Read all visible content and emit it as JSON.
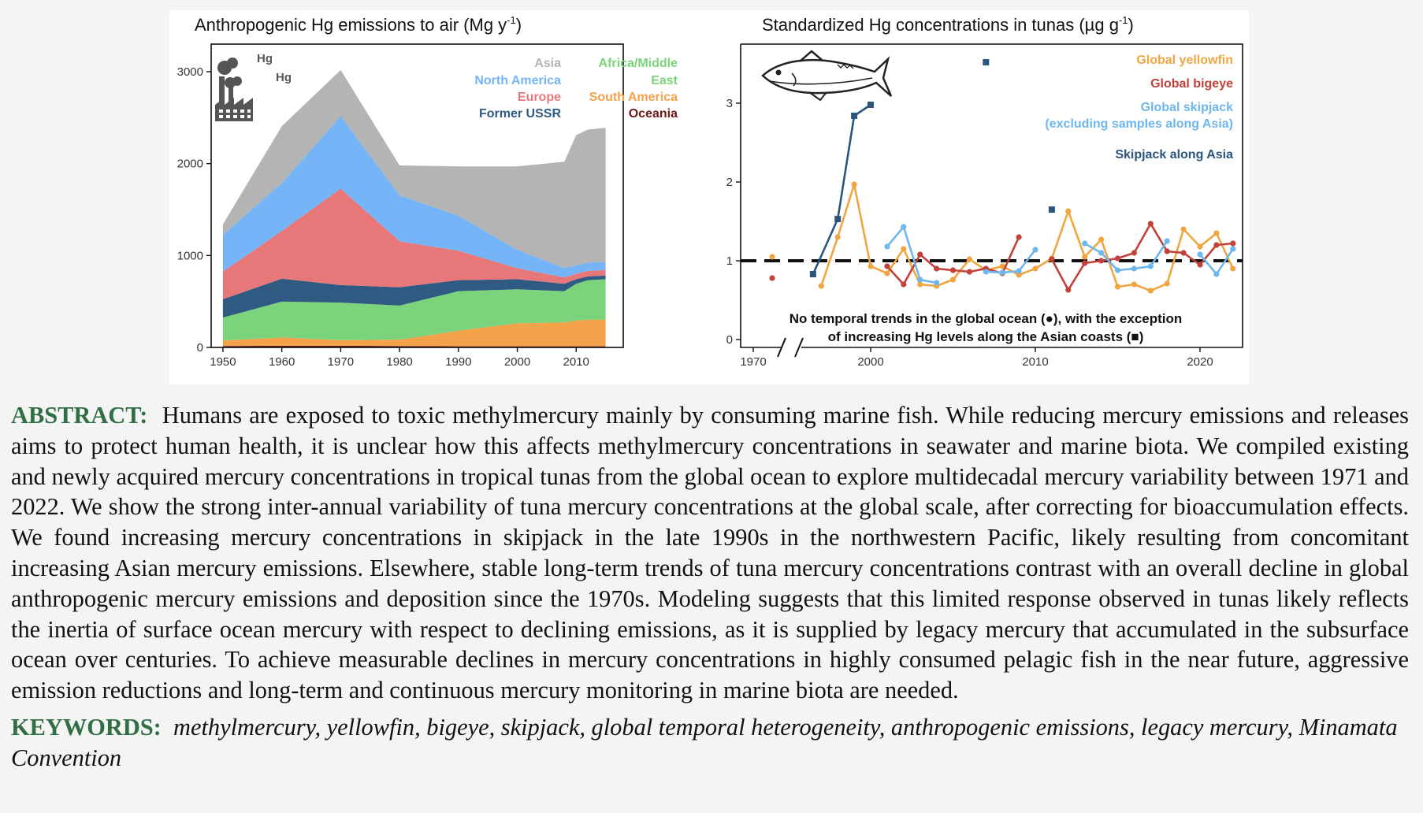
{
  "figure": {
    "left_panel": {
      "title": "Anthropogenic Hg emissions to air (Mg y",
      "title_sup": "-1",
      "title_end": ")",
      "icon_labels": [
        "Hg",
        "Hg"
      ],
      "legend": [
        {
          "name": "Asia",
          "color": "#b4b4b4"
        },
        {
          "name": "North America",
          "color": "#74b4f7"
        },
        {
          "name": "Europe",
          "color": "#e8777a"
        },
        {
          "name": "Former USSR",
          "color": "#2f5b82"
        },
        {
          "name": "Africa/Middle",
          "name_line2": "East",
          "color": "#7bd47b"
        },
        {
          "name": "South America",
          "color": "#f4a24a"
        },
        {
          "name": "Oceania",
          "color": "#6b1a14"
        }
      ]
    },
    "right_panel": {
      "title": "Standardized Hg concentrations in tunas (µg g",
      "title_sup": "-1",
      "title_end": ")",
      "legend": [
        {
          "name": "Global yellowfin",
          "color": "#f0a640"
        },
        {
          "name": "Global bigeye",
          "color": "#c2413a"
        },
        {
          "name": "Global skipjack",
          "name_line2": "(excluding samples along Asia)",
          "color": "#6db6ee"
        },
        {
          "name": "Skipjack along Asia",
          "color": "#2c557d"
        }
      ],
      "annotation_line1": "No temporal trends in the global ocean (●), with the exception",
      "annotation_line2": "of increasing Hg levels along the Asian coasts (■)"
    }
  },
  "chart_data": [
    {
      "type": "area",
      "stacked": true,
      "title": "Anthropogenic Hg emissions to air (Mg y-1)",
      "x": [
        1950,
        1960,
        1970,
        1980,
        1990,
        2000,
        2008,
        2010,
        2012,
        2015
      ],
      "xticks": [
        1950,
        1960,
        1970,
        1980,
        1990,
        2000,
        2010
      ],
      "ylim": [
        0,
        3300
      ],
      "yticks": [
        0,
        1000,
        2000,
        3000
      ],
      "legend_position": "top-right",
      "series": [
        {
          "name": "Oceania",
          "color": "#6b1a14",
          "values": [
            15,
            18,
            18,
            15,
            12,
            12,
            12,
            12,
            12,
            12
          ]
        },
        {
          "name": "South America",
          "color": "#f4a24a",
          "values": [
            60,
            90,
            60,
            70,
            170,
            250,
            260,
            280,
            290,
            290
          ]
        },
        {
          "name": "Africa/Middle East",
          "color": "#7bd47b",
          "values": [
            250,
            390,
            410,
            370,
            430,
            370,
            340,
            400,
            430,
            440
          ]
        },
        {
          "name": "Former USSR",
          "color": "#2f5b82",
          "values": [
            200,
            250,
            190,
            200,
            120,
            110,
            80,
            50,
            40,
            40
          ]
        },
        {
          "name": "Europe",
          "color": "#e8777a",
          "values": [
            300,
            520,
            1050,
            500,
            320,
            120,
            70,
            60,
            60,
            60
          ]
        },
        {
          "name": "North America",
          "color": "#74b4f7",
          "values": [
            400,
            520,
            790,
            500,
            380,
            200,
            100,
            90,
            90,
            90
          ]
        },
        {
          "name": "Asia",
          "color": "#b4b4b4",
          "values": [
            115,
            620,
            500,
            325,
            538,
            908,
            1158,
            1418,
            1448,
            1458
          ]
        }
      ]
    },
    {
      "type": "line",
      "title": "Standardized Hg concentrations in tunas (µg g-1)",
      "xlim": [
        1969,
        2025
      ],
      "xticks": [
        1970,
        2000,
        2010,
        2020
      ],
      "axis_break": "between 1970 and 2000",
      "ylim": [
        -0.1,
        3.75
      ],
      "yticks": [
        0,
        1,
        2,
        3
      ],
      "reference_line": 1,
      "legend_position": "top-right",
      "series": [
        {
          "name": "Global yellowfin",
          "color": "#f0a640",
          "marker": "circle",
          "points": [
            [
              1971.5,
              1.05
            ],
            [
              1997,
              0.68
            ],
            [
              1998,
              1.3
            ],
            [
              1999,
              1.97
            ],
            [
              2000,
              0.93
            ],
            [
              2001,
              0.84
            ],
            [
              2002,
              1.15
            ],
            [
              2003,
              0.7
            ],
            [
              2004,
              0.68
            ],
            [
              2005,
              0.76
            ],
            [
              2006,
              1.02
            ],
            [
              2007,
              0.88
            ],
            [
              2008,
              0.93
            ],
            [
              2009,
              0.82
            ],
            [
              2010,
              0.9
            ],
            [
              2011,
              1.03
            ],
            [
              2012,
              1.63
            ],
            [
              2013,
              1.05
            ],
            [
              2014,
              1.27
            ],
            [
              2015,
              0.67
            ],
            [
              2016,
              0.7
            ],
            [
              2017,
              0.62
            ],
            [
              2018,
              0.71
            ],
            [
              2019,
              1.4
            ],
            [
              2020,
              1.18
            ],
            [
              2021,
              1.35
            ],
            [
              2022,
              0.9
            ]
          ]
        },
        {
          "name": "Global bigeye",
          "color": "#c2413a",
          "marker": "circle",
          "points": [
            [
              1971.5,
              0.78
            ],
            [
              2001,
              0.93
            ],
            [
              2002,
              0.7
            ],
            [
              2003,
              1.08
            ],
            [
              2004,
              0.9
            ],
            [
              2005,
              0.88
            ],
            [
              2006,
              0.86
            ],
            [
              2007,
              0.9
            ],
            [
              2008,
              0.84
            ],
            [
              2009,
              1.3
            ],
            [
              2011,
              1.02
            ],
            [
              2012,
              0.63
            ],
            [
              2013,
              0.97
            ],
            [
              2014,
              1.0
            ],
            [
              2015,
              1.03
            ],
            [
              2016,
              1.1
            ],
            [
              2017,
              1.47
            ],
            [
              2018,
              1.12
            ],
            [
              2019,
              1.1
            ],
            [
              2020,
              0.95
            ],
            [
              2021,
              1.2
            ],
            [
              2022,
              1.22
            ]
          ]
        },
        {
          "name": "Global skipjack (excluding samples along Asia)",
          "color": "#6db6ee",
          "marker": "circle",
          "points": [
            [
              2001,
              1.18
            ],
            [
              2002,
              1.43
            ],
            [
              2003,
              0.76
            ],
            [
              2004,
              0.72
            ],
            [
              2007,
              0.86
            ],
            [
              2008,
              0.85
            ],
            [
              2009,
              0.87
            ],
            [
              2010,
              1.14
            ],
            [
              2013,
              1.22
            ],
            [
              2014,
              1.1
            ],
            [
              2015,
              0.88
            ],
            [
              2016,
              0.9
            ],
            [
              2017,
              0.93
            ],
            [
              2018,
              1.25
            ],
            [
              2020,
              1.08
            ],
            [
              2021,
              0.83
            ],
            [
              2022,
              1.15
            ]
          ]
        },
        {
          "name": "Skipjack along Asia",
          "color": "#2c557d",
          "marker": "square",
          "points": [
            [
              1996.5,
              0.83
            ],
            [
              1998,
              1.53
            ],
            [
              1999,
              2.84
            ],
            [
              2000,
              2.98
            ],
            [
              2007,
              3.52
            ],
            [
              2011,
              1.65
            ]
          ]
        }
      ]
    }
  ],
  "abstract_label": "ABSTRACT:",
  "abstract_text": "Humans are exposed to toxic methylmercury mainly by consuming marine fish. While reducing mercury emissions and releases aims to protect human health, it is unclear how this affects methylmercury concentrations in seawater and marine biota. We compiled existing and newly acquired mercury concentrations in tropical tunas from the global ocean to explore multidecadal mercury variability between 1971 and 2022. We show the strong inter-annual variability of tuna mercury concentrations at the global scale, after correcting for bioaccumulation effects. We found increasing mercury concentrations in skipjack in the late 1990s in the northwestern Pacific, likely resulting from concomitant increasing Asian mercury emissions. Elsewhere, stable long-term trends of tuna mercury concentrations contrast with an overall decline in global anthropogenic mercury emissions and deposition since the 1970s. Modeling suggests that this limited response observed in tunas likely reflects the inertia of surface ocean mercury with respect to declining emissions, as it is supplied by legacy mercury that accumulated in the subsurface ocean over centuries. To achieve measurable declines in mercury concentrations in highly consumed pelagic fish in the near future, aggressive emission reductions and long-term and continuous mercury monitoring in marine biota are needed.",
  "keywords_label": "KEYWORDS:",
  "keywords_text": "methylmercury, yellowfin, bigeye, skipjack, global temporal heterogeneity, anthropogenic emissions, legacy mercury, Minamata Convention"
}
